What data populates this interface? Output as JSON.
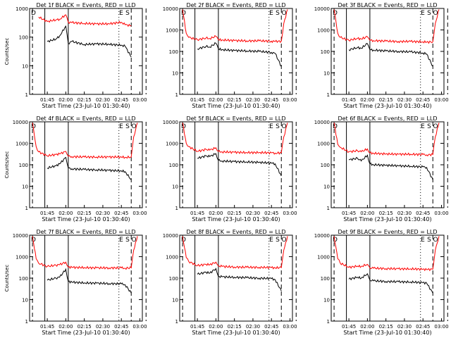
{
  "colors": {
    "background": "#ffffff",
    "axes": "#000000",
    "events": "#000000",
    "lld": "#ff0000"
  },
  "chart_data": [
    {
      "type": "line",
      "title": "Det  1f BLACK = Events, RED = LLD",
      "xlabel": "Start Time (23-Jul-10 01:30:40)",
      "ylabel": "Counts/sec",
      "yscale": "log",
      "ylim": [
        1,
        1000
      ],
      "yticks": [
        "1",
        "10",
        "100",
        "1000"
      ],
      "xticks": [
        "01:45",
        "02:00",
        "02:15",
        "02:30",
        "02:45",
        "03:00"
      ],
      "vlines_solid": [
        "01:43",
        "02:02"
      ],
      "vlines_dashed": [
        "01:33",
        "02:43",
        "02:53",
        "03:05"
      ],
      "annotations": [
        "E",
        "S"
      ],
      "x": [
        "01:38",
        "01:45",
        "01:52",
        "01:55",
        "02:00",
        "02:02",
        "02:05",
        "02:15",
        "02:25",
        "02:35",
        "02:45",
        "02:48",
        "02:53"
      ],
      "series": [
        {
          "name": "Events",
          "values": [
            null,
            70,
            85,
            110,
            240,
            60,
            70,
            55,
            58,
            56,
            52,
            48,
            20
          ]
        },
        {
          "name": "LLD",
          "values": [
            500,
            350,
            400,
            420,
            600,
            330,
            320,
            300,
            290,
            290,
            330,
            270,
            250
          ]
        }
      ]
    },
    {
      "type": "line",
      "title": "Det  2f BLACK = Events, RED = LLD",
      "xlabel": "Start Time (23-Jul-10 01:30:40)",
      "ylabel": "",
      "yscale": "log",
      "ylim": [
        1,
        10000
      ],
      "yticks": [
        "1",
        "10",
        "100",
        "1000",
        "10000"
      ],
      "xticks": [
        "01:45",
        "02:00",
        "02:15",
        "02:30",
        "02:45",
        "03:00"
      ],
      "vlines_solid": [
        "01:43",
        "02:02"
      ],
      "vlines_dashed": [
        "01:33",
        "02:43",
        "02:53",
        "03:05"
      ],
      "annotations": [
        "E",
        "S",
        "O"
      ],
      "x": [
        "01:33",
        "01:36",
        "01:38",
        "01:45",
        "01:52",
        "01:55",
        "02:00",
        "02:02",
        "02:05",
        "02:15",
        "02:25",
        "02:35",
        "02:45",
        "02:48",
        "02:53",
        "02:55",
        "02:58"
      ],
      "series": [
        {
          "name": "Events",
          "values": [
            null,
            null,
            null,
            130,
            170,
            160,
            240,
            130,
            120,
            110,
            105,
            100,
            90,
            80,
            20,
            null,
            null
          ]
        },
        {
          "name": "LLD",
          "values": [
            9000,
            700,
            450,
            350,
            420,
            400,
            500,
            350,
            340,
            320,
            310,
            310,
            300,
            290,
            300,
            2000,
            9000
          ]
        }
      ]
    },
    {
      "type": "line",
      "title": "Det  3f BLACK = Events, RED = LLD",
      "xlabel": "Start Time (23-Jul-10 01:30:40)",
      "ylabel": "",
      "yscale": "log",
      "ylim": [
        1,
        10000
      ],
      "yticks": [
        "1",
        "10",
        "100",
        "1000",
        "10000"
      ],
      "xticks": [
        "01:45",
        "02:00",
        "02:15",
        "02:30",
        "02:45",
        "03:00"
      ],
      "vlines_solid": [
        "01:43",
        "02:02"
      ],
      "vlines_dashed": [
        "01:33",
        "02:43",
        "02:53",
        "03:05"
      ],
      "annotations": [
        "E",
        "S",
        "O"
      ],
      "x": [
        "01:33",
        "01:36",
        "01:38",
        "01:45",
        "01:52",
        "01:55",
        "02:00",
        "02:02",
        "02:05",
        "02:15",
        "02:25",
        "02:35",
        "02:45",
        "02:48",
        "02:53",
        "02:55",
        "02:58"
      ],
      "series": [
        {
          "name": "Events",
          "values": [
            null,
            null,
            null,
            120,
            150,
            140,
            230,
            120,
            115,
            105,
            100,
            95,
            85,
            75,
            20,
            null,
            null
          ]
        },
        {
          "name": "LLD",
          "values": [
            9000,
            700,
            450,
            330,
            400,
            380,
            480,
            330,
            320,
            300,
            290,
            290,
            280,
            270,
            280,
            2000,
            9000
          ]
        }
      ]
    },
    {
      "type": "line",
      "title": "Det  4f BLACK = Events, RED = LLD",
      "xlabel": "Start Time (23-Jul-10 01:30:40)",
      "ylabel": "Counts/sec",
      "yscale": "log",
      "ylim": [
        1,
        10000
      ],
      "yticks": [
        "1",
        "10",
        "100",
        "1000",
        "10000"
      ],
      "xticks": [
        "01:45",
        "02:00",
        "02:15",
        "02:30",
        "02:45",
        "03:00"
      ],
      "vlines_solid": [
        "01:43",
        "02:02"
      ],
      "vlines_dashed": [
        "01:33",
        "02:43",
        "02:53",
        "03:05"
      ],
      "annotations": [
        "E",
        "S",
        "O"
      ],
      "x": [
        "01:33",
        "01:36",
        "01:38",
        "01:45",
        "01:52",
        "01:55",
        "02:00",
        "02:02",
        "02:05",
        "02:15",
        "02:25",
        "02:35",
        "02:45",
        "02:48",
        "02:53",
        "02:55",
        "02:58"
      ],
      "series": [
        {
          "name": "Events",
          "values": [
            null,
            null,
            null,
            70,
            90,
            110,
            220,
            70,
            65,
            60,
            58,
            55,
            52,
            48,
            20,
            null,
            null
          ]
        },
        {
          "name": "LLD",
          "values": [
            9000,
            700,
            400,
            260,
            300,
            320,
            420,
            250,
            240,
            230,
            230,
            230,
            230,
            220,
            230,
            2000,
            9000
          ]
        }
      ]
    },
    {
      "type": "line",
      "title": "Det  5f BLACK = Events, RED = LLD",
      "xlabel": "Start Time (23-Jul-10 01:30:40)",
      "ylabel": "",
      "yscale": "log",
      "ylim": [
        1,
        10000
      ],
      "yticks": [
        "1",
        "10",
        "100",
        "1000",
        "10000"
      ],
      "xticks": [
        "01:45",
        "02:00",
        "02:15",
        "02:30",
        "02:45",
        "03:00"
      ],
      "vlines_solid": [
        "01:43",
        "02:02"
      ],
      "vlines_dashed": [
        "01:33",
        "02:43",
        "02:53",
        "03:05"
      ],
      "annotations": [
        "E",
        "S",
        "O"
      ],
      "x": [
        "01:33",
        "01:36",
        "01:38",
        "01:45",
        "01:52",
        "01:55",
        "02:00",
        "02:02",
        "02:05",
        "02:15",
        "02:25",
        "02:35",
        "02:45",
        "02:48",
        "02:53",
        "02:55",
        "02:58"
      ],
      "series": [
        {
          "name": "Events",
          "values": [
            null,
            null,
            null,
            200,
            260,
            240,
            330,
            160,
            150,
            140,
            135,
            130,
            120,
            110,
            30,
            null,
            null
          ]
        },
        {
          "name": "LLD",
          "values": [
            9000,
            1000,
            700,
            420,
            520,
            480,
            620,
            420,
            400,
            380,
            370,
            370,
            360,
            350,
            360,
            2000,
            9000
          ]
        }
      ]
    },
    {
      "type": "line",
      "title": "Det  6f BLACK = Events, RED = LLD",
      "xlabel": "Start Time (23-Jul-10 01:30:40)",
      "ylabel": "",
      "yscale": "log",
      "ylim": [
        1,
        10000
      ],
      "yticks": [
        "1",
        "10",
        "100",
        "1000",
        "10000"
      ],
      "xticks": [
        "01:45",
        "02:00",
        "02:15",
        "02:30",
        "02:45",
        "03:00"
      ],
      "vlines_solid": [
        "01:43",
        "02:02"
      ],
      "vlines_dashed": [
        "01:33",
        "02:43",
        "02:53",
        "03:05"
      ],
      "annotations": [
        "E",
        "S",
        "O"
      ],
      "x": [
        "01:33",
        "01:36",
        "01:38",
        "01:45",
        "01:52",
        "01:55",
        "02:00",
        "02:02",
        "02:05",
        "02:15",
        "02:25",
        "02:35",
        "02:45",
        "02:48",
        "02:53",
        "02:55",
        "02:58"
      ],
      "series": [
        {
          "name": "Events",
          "values": [
            null,
            null,
            null,
            170,
            200,
            150,
            280,
            110,
            100,
            95,
            90,
            85,
            80,
            75,
            20,
            null,
            null
          ]
        },
        {
          "name": "LLD",
          "values": [
            9000,
            900,
            650,
            400,
            450,
            400,
            550,
            360,
            340,
            320,
            310,
            310,
            300,
            290,
            300,
            2000,
            9000
          ]
        }
      ]
    },
    {
      "type": "line",
      "title": "Det  7f BLACK = Events, RED = LLD",
      "xlabel": "Start Time (23-Jul-10 01:30:40)",
      "ylabel": "Counts/sec",
      "yscale": "log",
      "ylim": [
        1,
        10000
      ],
      "yticks": [
        "1",
        "10",
        "100",
        "1000",
        "10000"
      ],
      "xticks": [
        "01:45",
        "02:00",
        "02:15",
        "02:30",
        "02:45",
        "03:00"
      ],
      "vlines_solid": [
        "01:43",
        "02:02"
      ],
      "vlines_dashed": [
        "01:33",
        "02:43",
        "02:53",
        "03:05"
      ],
      "annotations": [
        "E",
        "S",
        "O"
      ],
      "x": [
        "01:33",
        "01:36",
        "01:38",
        "01:45",
        "01:52",
        "01:55",
        "02:00",
        "02:02",
        "02:05",
        "02:15",
        "02:25",
        "02:35",
        "02:45",
        "02:48",
        "02:53",
        "02:55",
        "02:58"
      ],
      "series": [
        {
          "name": "Events",
          "values": [
            null,
            null,
            null,
            80,
            100,
            110,
            260,
            70,
            65,
            60,
            58,
            56,
            54,
            50,
            20,
            null,
            null
          ]
        },
        {
          "name": "LLD",
          "values": [
            9000,
            800,
            500,
            350,
            400,
            420,
            560,
            330,
            320,
            310,
            300,
            300,
            300,
            290,
            300,
            2000,
            9000
          ]
        }
      ]
    },
    {
      "type": "line",
      "title": "Det  8f BLACK = Events, RED = LLD",
      "xlabel": "Start Time (23-Jul-10 01:30:40)",
      "ylabel": "",
      "yscale": "log",
      "ylim": [
        1,
        10000
      ],
      "yticks": [
        "1",
        "10",
        "100",
        "1000",
        "10000"
      ],
      "xticks": [
        "01:45",
        "02:00",
        "02:15",
        "02:30",
        "02:45",
        "03:00"
      ],
      "vlines_solid": [
        "01:43",
        "02:02"
      ],
      "vlines_dashed": [
        "01:33",
        "02:43",
        "02:53",
        "03:05"
      ],
      "annotations": [
        "E",
        "S",
        "O"
      ],
      "x": [
        "01:33",
        "01:36",
        "01:38",
        "01:45",
        "01:52",
        "01:55",
        "02:00",
        "02:02",
        "02:05",
        "02:15",
        "02:25",
        "02:35",
        "02:45",
        "02:48",
        "02:53",
        "02:55",
        "02:58"
      ],
      "series": [
        {
          "name": "Events",
          "values": [
            null,
            null,
            null,
            150,
            190,
            170,
            280,
            120,
            115,
            110,
            105,
            100,
            95,
            85,
            25,
            null,
            null
          ]
        },
        {
          "name": "LLD",
          "values": [
            9000,
            900,
            600,
            380,
            440,
            420,
            560,
            370,
            350,
            330,
            320,
            320,
            310,
            300,
            310,
            2000,
            9000
          ]
        }
      ]
    },
    {
      "type": "line",
      "title": "Det  9f BLACK = Events, RED = LLD",
      "xlabel": "Start Time (23-Jul-10 01:30:40)",
      "ylabel": "",
      "yscale": "log",
      "ylim": [
        1,
        10000
      ],
      "yticks": [
        "1",
        "10",
        "100",
        "1000",
        "10000"
      ],
      "xticks": [
        "01:45",
        "02:00",
        "02:15",
        "02:30",
        "02:45",
        "03:00"
      ],
      "vlines_solid": [
        "01:43",
        "02:02"
      ],
      "vlines_dashed": [
        "01:33",
        "02:43",
        "02:53",
        "03:05"
      ],
      "annotations": [
        "E",
        "S",
        "O"
      ],
      "x": [
        "01:33",
        "01:36",
        "01:38",
        "01:45",
        "01:52",
        "01:55",
        "02:00",
        "02:02",
        "02:05",
        "02:15",
        "02:25",
        "02:35",
        "02:45",
        "02:48",
        "02:53",
        "02:55",
        "02:58"
      ],
      "series": [
        {
          "name": "Events",
          "values": [
            null,
            null,
            null,
            90,
            110,
            100,
            160,
            80,
            75,
            70,
            68,
            66,
            62,
            58,
            20,
            null,
            null
          ]
        },
        {
          "name": "LLD",
          "values": [
            9000,
            800,
            500,
            320,
            360,
            350,
            440,
            300,
            290,
            280,
            270,
            270,
            260,
            250,
            260,
            2000,
            9000
          ]
        }
      ]
    }
  ]
}
